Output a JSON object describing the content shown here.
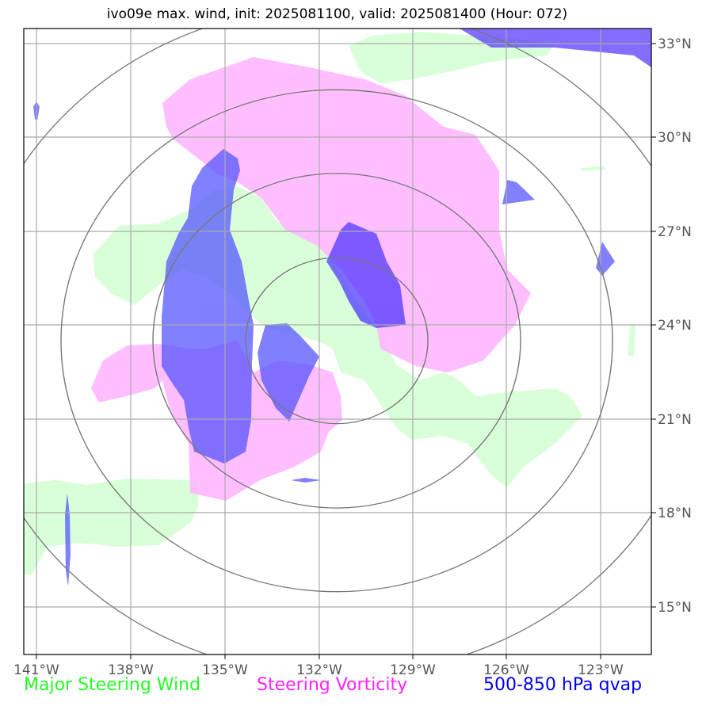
{
  "title": "ivo09e max. wind, init: 2025081100, valid: 2025081400 (Hour: 072)",
  "lon_labels": [
    "141°W",
    "138°W",
    "135°W",
    "132°W",
    "129°W",
    "126°W",
    "123°W"
  ],
  "lat_labels": [
    "33°N",
    "30°N",
    "27°N",
    "24°N",
    "21°N",
    "18°N",
    "15°N"
  ],
  "legend": [
    {
      "label": "Major Steering Wind",
      "color": "#22ff22"
    },
    {
      "label": "Steering Vorticity",
      "color": "#ff22ff"
    },
    {
      "label": "500-850 hPa qvap",
      "color": "#0000ee"
    }
  ],
  "colors": {
    "wind_fill": "#ccffcc",
    "vorticity_fill": "#ffb3ff",
    "qvap_fill": "#5050ff",
    "range_rings": "#777777",
    "gridlines": "#aaaaaa"
  }
}
